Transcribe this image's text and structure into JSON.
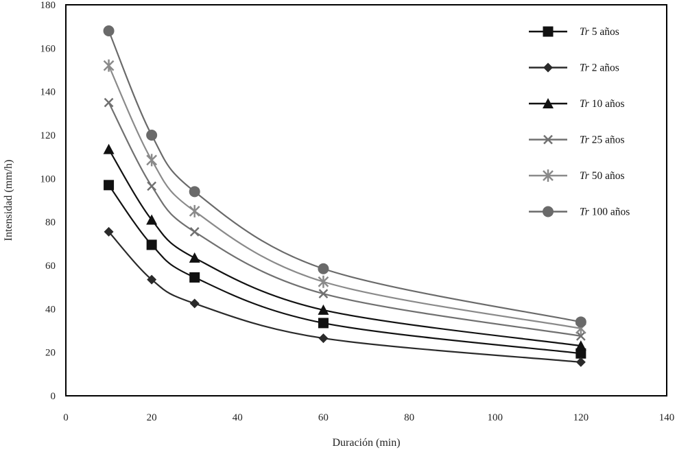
{
  "chart_data": {
    "type": "line",
    "xlabel": "Duración (min)",
    "ylabel": "Intensidad (mm/h)",
    "xlim": [
      0,
      140
    ],
    "ylim": [
      0,
      180
    ],
    "xticks": [
      "0",
      "20",
      "40",
      "60",
      "80",
      "100",
      "120",
      "140"
    ],
    "yticks": [
      "0",
      "20",
      "40",
      "60",
      "80",
      "100",
      "120",
      "140",
      "160",
      "180"
    ],
    "grid": false,
    "legend_position": "top-right",
    "x": [
      10,
      20,
      30,
      60,
      120
    ],
    "series": [
      {
        "name": "Tr 5 años",
        "prefix": "Tr",
        "suffix": " 5 años",
        "marker": "square",
        "color": "#111111",
        "values": [
          97,
          69.5,
          54.5,
          33.5,
          19.5
        ]
      },
      {
        "name": "Tr 2 años",
        "prefix": "Tr",
        "suffix": " 2 años",
        "marker": "diamond",
        "color": "#2a2a2a",
        "values": [
          75.5,
          53.5,
          42.5,
          26.5,
          15.5
        ]
      },
      {
        "name": "Tr 10 años",
        "prefix": "Tr",
        "suffix": " 10 años",
        "marker": "triangle",
        "color": "#111111",
        "values": [
          113.5,
          81,
          63.5,
          39.5,
          23
        ]
      },
      {
        "name": "Tr 25 años",
        "prefix": "Tr",
        "suffix": " 25 años",
        "marker": "x",
        "color": "#707070",
        "values": [
          135,
          96.5,
          75.5,
          47,
          27.5
        ]
      },
      {
        "name": "Tr 50 años",
        "prefix": "Tr",
        "suffix": " 50 años",
        "marker": "star",
        "color": "#8a8a8a",
        "values": [
          152,
          108.5,
          85,
          52.5,
          31
        ]
      },
      {
        "name": "Tr 100 años",
        "prefix": "Tr",
        "suffix": " 100 años",
        "marker": "circle",
        "color": "#6a6a6a",
        "values": [
          168,
          120,
          94,
          58.5,
          34
        ]
      }
    ]
  }
}
